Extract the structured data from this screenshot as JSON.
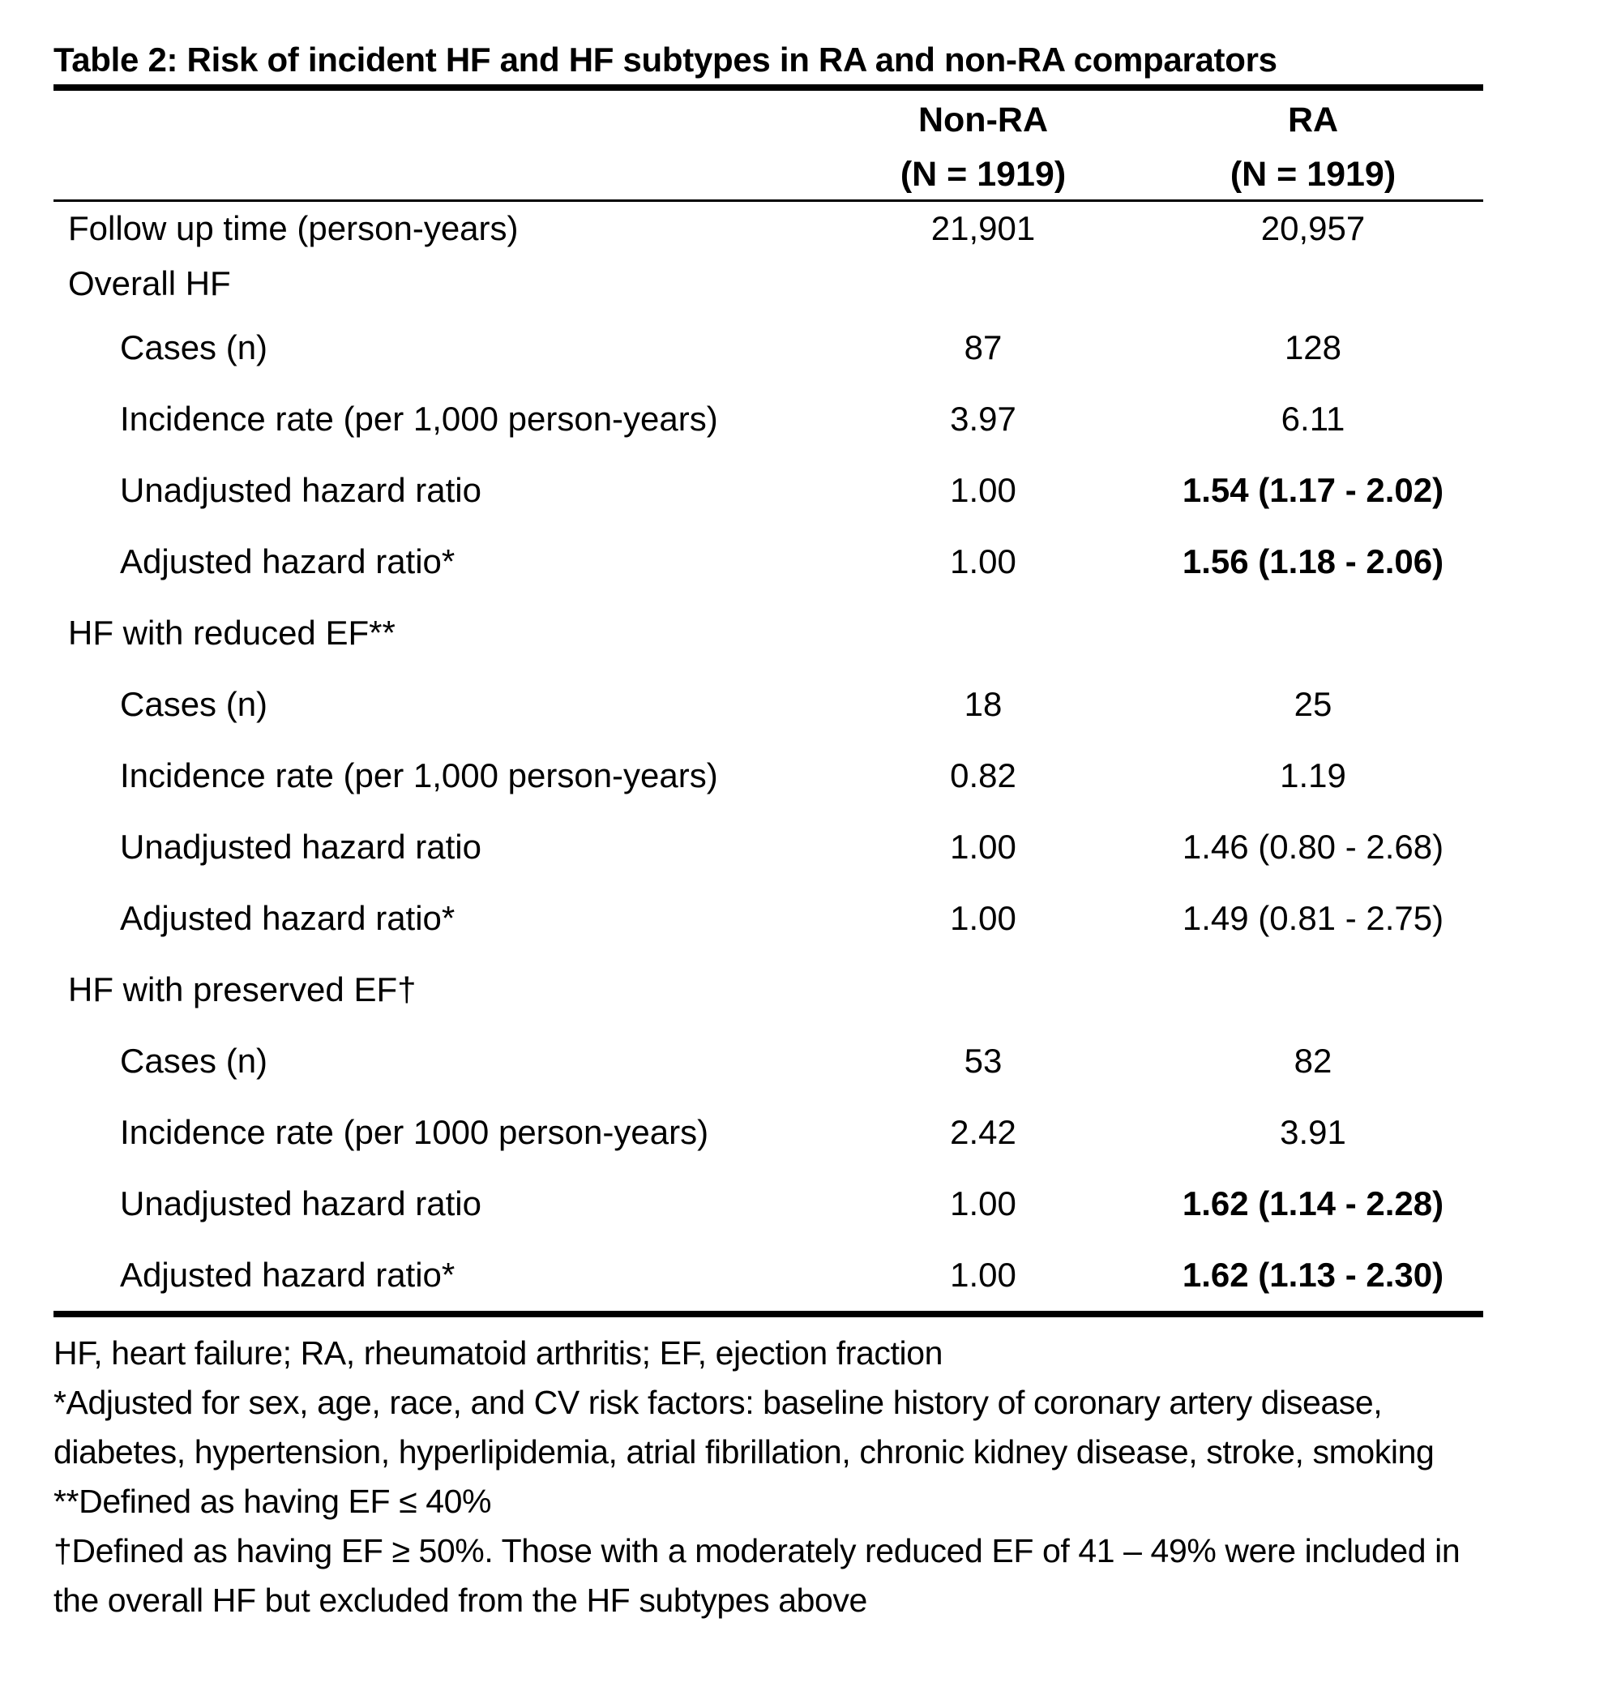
{
  "title": "Table 2: Risk of incident HF and HF subtypes in RA and non-RA comparators",
  "header": {
    "nonra_line1": "Non-RA",
    "nonra_line2": "(N = 1919)",
    "ra_line1": "RA",
    "ra_line2": "(N = 1919)"
  },
  "rows": [
    {
      "label": "Follow up time (person-years)",
      "nonra": "21,901",
      "ra": "20,957"
    },
    {
      "label": "Overall HF",
      "nonra": "",
      "ra": ""
    },
    {
      "label": "Cases (n)",
      "nonra": "87",
      "ra": "128"
    },
    {
      "label": "Incidence rate (per 1,000 person-years)",
      "nonra": "3.97",
      "ra": "6.11"
    },
    {
      "label": "Unadjusted hazard ratio",
      "nonra": "1.00",
      "ra": "1.54 (1.17 - 2.02)"
    },
    {
      "label": "Adjusted hazard ratio*",
      "nonra": "1.00",
      "ra": "1.56 (1.18 - 2.06)"
    },
    {
      "label": "HF with reduced EF**",
      "nonra": "",
      "ra": ""
    },
    {
      "label": "Cases (n)",
      "nonra": "18",
      "ra": "25"
    },
    {
      "label": "Incidence rate (per 1,000 person-years)",
      "nonra": "0.82",
      "ra": "1.19"
    },
    {
      "label": "Unadjusted hazard ratio",
      "nonra": "1.00",
      "ra": "1.46 (0.80 - 2.68)"
    },
    {
      "label": "Adjusted hazard ratio*",
      "nonra": "1.00",
      "ra": "1.49 (0.81 - 2.75)"
    },
    {
      "label": "HF with preserved EF†",
      "nonra": "",
      "ra": ""
    },
    {
      "label": "Cases (n)",
      "nonra": "53",
      "ra": "82"
    },
    {
      "label": "Incidence rate (per 1000 person-years)",
      "nonra": "2.42",
      "ra": "3.91"
    },
    {
      "label": "Unadjusted hazard ratio",
      "nonra": "1.00",
      "ra": "1.62 (1.14 - 2.28)"
    },
    {
      "label": "Adjusted hazard ratio*",
      "nonra": "1.00",
      "ra": "1.62 (1.13 - 2.30)"
    }
  ],
  "footnotes": [
    "HF, heart failure; RA, rheumatoid arthritis; EF, ejection fraction",
    "*Adjusted for sex, age, race, and CV risk factors: baseline history of coronary artery disease,",
    "diabetes, hypertension, hyperlipidemia, atrial fibrillation, chronic kidney disease, stroke, smoking",
    "**Defined as having EF ≤ 40%",
    "†Defined as having EF ≥ 50%. Those with a moderately reduced EF of 41 – 49% were included in",
    "the overall HF but excluded from the HF subtypes above"
  ]
}
